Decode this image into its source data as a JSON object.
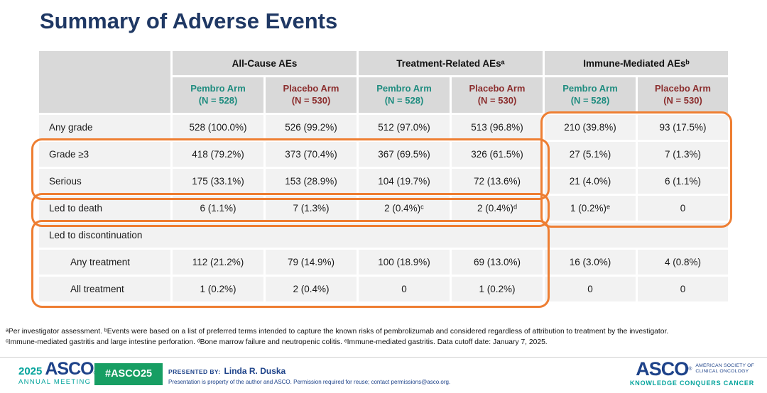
{
  "title": "Summary of Adverse Events",
  "colors": {
    "title_navy": "#1F3864",
    "header_gray": "#D9D9D9",
    "row_gray": "#F2F2F2",
    "pembro_teal": "#1E8C7F",
    "placebo_dark_red": "#8B2D2D",
    "highlight_orange": "#EE7E32",
    "asco_blue": "#1D4289",
    "asco_teal": "#00A39B",
    "badge_green": "#179E63"
  },
  "table": {
    "group_headers": [
      "All-Cause AEs",
      "Treatment-Related AEsᵃ",
      "Immune-Mediated AEsᵇ"
    ],
    "arms": [
      {
        "name": "Pembro Arm",
        "n": "(N = 528)"
      },
      {
        "name": "Placebo Arm",
        "n": "(N = 530)"
      },
      {
        "name": "Pembro Arm",
        "n": "(N = 528)"
      },
      {
        "name": "Placebo Arm",
        "n": "(N = 530)"
      },
      {
        "name": "Pembro Arm",
        "n": "(N = 528)"
      },
      {
        "name": "Placebo Arm",
        "n": "(N = 530)"
      }
    ],
    "rows": [
      {
        "label": "Any grade",
        "cells": [
          "528 (100.0%)",
          "526 (99.2%)",
          "512 (97.0%)",
          "513 (96.8%)",
          "210 (39.8%)",
          "93 (17.5%)"
        ]
      },
      {
        "label": "Grade ≥3",
        "cells": [
          "418 (79.2%)",
          "373 (70.4%)",
          "367 (69.5%)",
          "326 (61.5%)",
          "27 (5.1%)",
          "7 (1.3%)"
        ]
      },
      {
        "label": "Serious",
        "cells": [
          "175 (33.1%)",
          "153 (28.9%)",
          "104 (19.7%)",
          "72 (13.6%)",
          "21 (4.0%)",
          "6 (1.1%)"
        ]
      },
      {
        "label": "Led to death",
        "cells": [
          "6 (1.1%)",
          "7 (1.3%)",
          "2 (0.4%)ᶜ",
          "2 (0.4%)ᵈ",
          "1 (0.2%)ᵉ",
          "0"
        ]
      },
      {
        "label": "Led to discontinuation"
      },
      {
        "label": "Any treatment",
        "cells": [
          "112 (21.2%)",
          "79 (14.9%)",
          "100 (18.9%)",
          "69 (13.0%)",
          "16 (3.0%)",
          "4 (0.8%)"
        ]
      },
      {
        "label": "All treatment",
        "cells": [
          "1 (0.2%)",
          "2 (0.4%)",
          "0",
          "1 (0.2%)",
          "0",
          "0"
        ]
      }
    ]
  },
  "footnotes": [
    "ᵃPer investigator assessment. ᵇEvents were based on a list of preferred terms intended to capture the known risks of pembrolizumab and considered regardless of attribution to treatment by the investigator.",
    "ᶜImmune-mediated gastritis and large intestine perforation. ᵈBone marrow failure and neutropenic colitis. ᵉImmune-mediated gastritis.  Data cutoff date: January 7, 2025."
  ],
  "footer": {
    "meeting_year": "2025",
    "meeting_org": "ASCO",
    "reg": "®",
    "meeting_name": "ANNUAL MEETING",
    "hashtag": "#ASCO25",
    "presented_by_label": "PRESENTED BY:",
    "presenter": "Linda R. Duska",
    "disclaimer": "Presentation is property of the author and ASCO. Permission required for reuse; contact permissions@asco.org.",
    "asco_logo": "ASCO",
    "asco_society_line1": "AMERICAN SOCIETY OF",
    "asco_society_line2": "CLINICAL ONCOLOGY",
    "asco_tagline": "KNOWLEDGE CONQUERS CANCER"
  }
}
